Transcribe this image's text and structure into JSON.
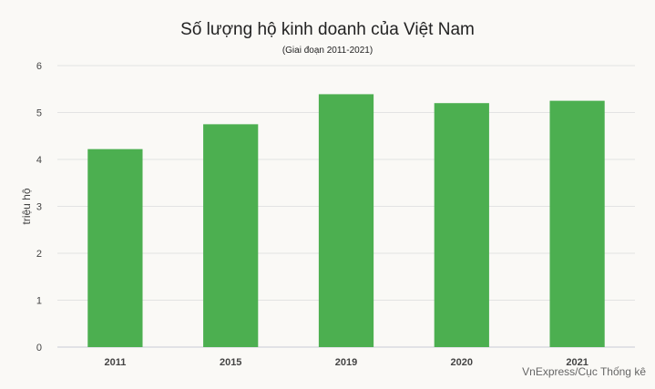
{
  "chart_data": {
    "type": "bar",
    "title": "Số lượng hộ kinh doanh của Việt Nam",
    "subtitle": "(Giai đoạn 2011-2021)",
    "xlabel": "",
    "ylabel": "triệu hộ",
    "categories": [
      "2011",
      "2015",
      "2019",
      "2020",
      "2021"
    ],
    "values": [
      4.22,
      4.75,
      5.39,
      5.2,
      5.25
    ],
    "ylim": [
      0,
      6
    ],
    "yticks": [
      0,
      1,
      2,
      3,
      4,
      5,
      6
    ],
    "grid": true,
    "bar_color": "#4caf50",
    "source": "VnExpress/Cục Thống kê"
  }
}
